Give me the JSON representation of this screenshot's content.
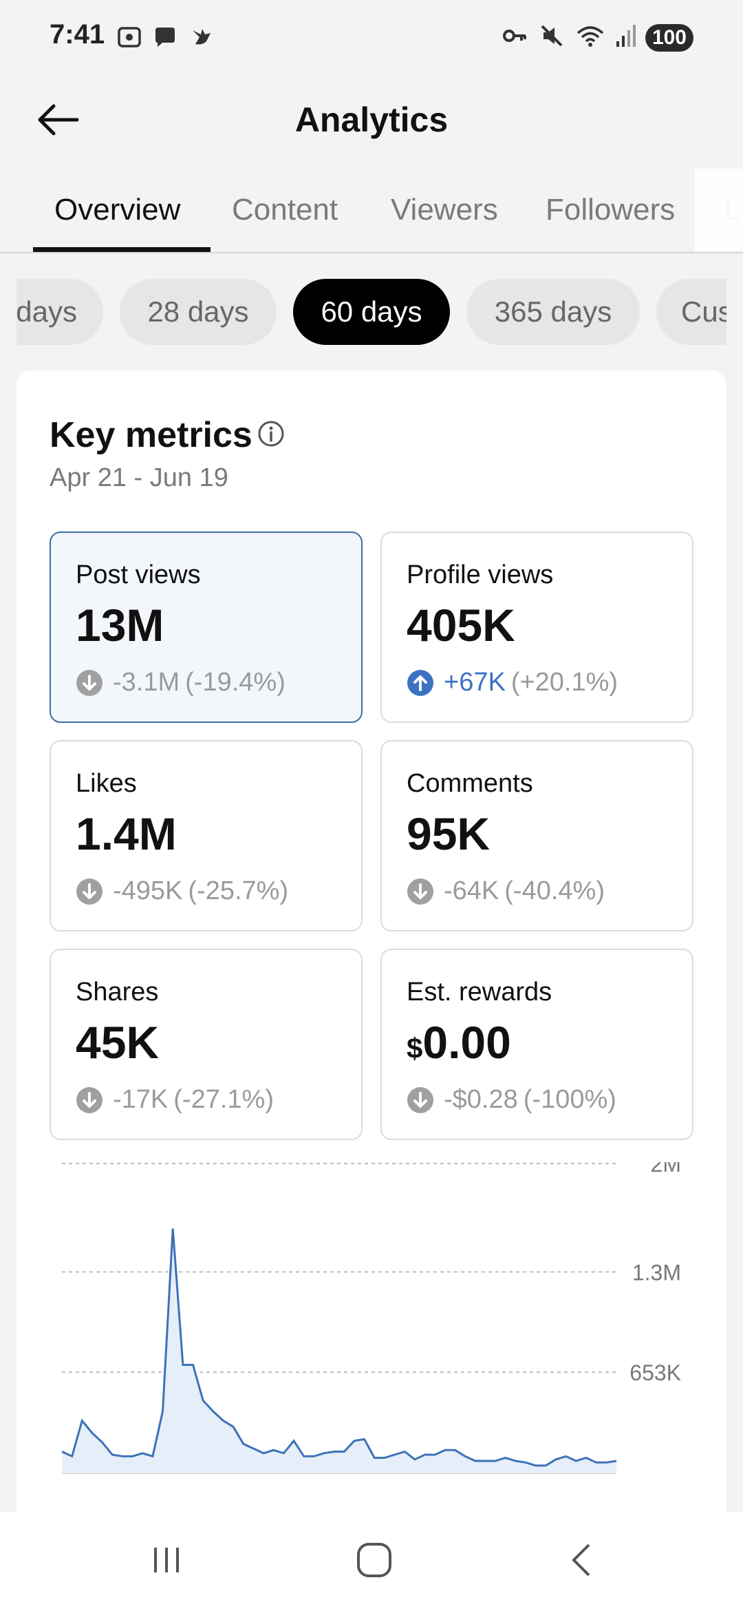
{
  "status_bar": {
    "time": "7:41",
    "battery": "100",
    "icons": [
      "screenshot-icon",
      "chat-bubble-icon",
      "bird-icon",
      "vpn-key-icon",
      "mute-icon",
      "wifi-icon",
      "signal-icon"
    ]
  },
  "header": {
    "title": "Analytics",
    "back_icon": "arrow-left-icon"
  },
  "tabs": {
    "items": [
      "Overview",
      "Content",
      "Viewers",
      "Followers",
      "L"
    ],
    "active": "Overview"
  },
  "periods": {
    "items": [
      "days",
      "28 days",
      "60 days",
      "365 days",
      "Cus"
    ],
    "active": "60 days"
  },
  "key_metrics": {
    "title": "Key metrics",
    "info_icon": "info-icon",
    "date_range": "Apr 21 - Jun 19",
    "cards": [
      {
        "label": "Post views",
        "value": "13M",
        "change_abs": "-3.1M",
        "change_pct": "(-19.4%)",
        "direction": "down",
        "selected": true
      },
      {
        "label": "Profile views",
        "value": "405K",
        "change_abs": "+67K",
        "change_pct": "(+20.1%)",
        "direction": "up",
        "selected": false
      },
      {
        "label": "Likes",
        "value": "1.4M",
        "change_abs": "-495K",
        "change_pct": "(-25.7%)",
        "direction": "down",
        "selected": false
      },
      {
        "label": "Comments",
        "value": "95K",
        "change_abs": "-64K",
        "change_pct": "(-40.4%)",
        "direction": "down",
        "selected": false
      },
      {
        "label": "Shares",
        "value": "45K",
        "change_abs": "-17K",
        "change_pct": "(-27.1%)",
        "direction": "down",
        "selected": false
      },
      {
        "label": "Est. rewards",
        "value_currency": "$",
        "value": "0.00",
        "change_abs": "-$0.28",
        "change_pct": "(-100%)",
        "direction": "down",
        "selected": false
      }
    ]
  },
  "chart_data": {
    "type": "area",
    "series": [
      {
        "values": [
          140000,
          110000,
          340000,
          260000,
          200000,
          120000,
          110000,
          110000,
          130000,
          110000,
          400000,
          1580000,
          700000,
          700000,
          470000,
          400000,
          340000,
          300000,
          190000,
          160000,
          130000,
          150000,
          130000,
          210000,
          110000,
          110000,
          130000,
          140000,
          140000,
          210000,
          220000,
          100000,
          100000,
          120000,
          140000,
          90000,
          120000,
          120000,
          150000,
          150000,
          110000,
          80000,
          80000,
          80000,
          100000,
          80000,
          70000,
          50000,
          50000,
          90000,
          110000,
          80000,
          100000,
          70000,
          70000,
          80000
        ]
      }
    ],
    "y_ticks": [
      "2M",
      "1.3M",
      "653K"
    ],
    "y_tick_values": [
      2000000,
      1300000,
      653000
    ],
    "ylim": [
      0,
      2000000
    ],
    "grid": true,
    "colors": {
      "line": "#3c72b8",
      "fill": "#e6eef9"
    }
  },
  "nav_bar": {
    "icons": [
      "recent-apps-icon",
      "home-icon",
      "back-chevron-icon"
    ]
  },
  "colors": {
    "accent_blue": "#3b72c4",
    "selected_border": "#3b6ea5",
    "selected_bg": "#f3f7fc",
    "muted_text": "#9a9a9a"
  }
}
